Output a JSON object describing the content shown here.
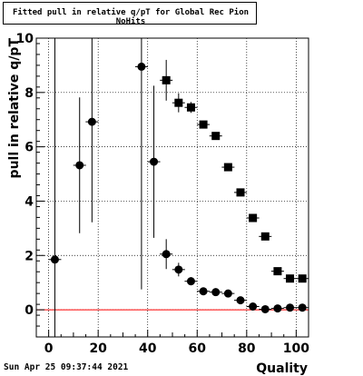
{
  "title": "Fitted pull in relative q/pT for Global Rec Pion NoHits",
  "footer": {
    "date": "Sun Apr 25 09:37:44 2021"
  },
  "chart_data": {
    "type": "scatter",
    "title": "Fitted pull in relative q/pT for Global Rec Pion NoHits",
    "xlabel": "Quality",
    "ylabel": "pull in relative q/pT",
    "xlim": [
      -5,
      105
    ],
    "ylim": [
      -1,
      10
    ],
    "xticks": [
      0,
      20,
      40,
      60,
      80,
      100
    ],
    "yticks": [
      0,
      2,
      4,
      6,
      8,
      10
    ],
    "grid": true,
    "reference_line": {
      "y": 0,
      "color": "#ff0000"
    },
    "series": [
      {
        "marker": "circle",
        "color": "#000000",
        "points": [
          {
            "x": 2.5,
            "y": 1.85,
            "err": 8.3
          },
          {
            "x": 12.5,
            "y": 5.32,
            "err": 2.5
          },
          {
            "x": 17.5,
            "y": 6.92,
            "err": 3.7
          },
          {
            "x": 37.5,
            "y": 8.95,
            "err": 8.2
          },
          {
            "x": 42.5,
            "y": 5.45,
            "err": 2.8
          },
          {
            "x": 47.5,
            "y": 2.05,
            "err": 0.55
          },
          {
            "x": 52.5,
            "y": 1.48,
            "err": 0.25
          },
          {
            "x": 57.5,
            "y": 1.05,
            "err": 0.15
          },
          {
            "x": 62.5,
            "y": 0.68,
            "err": 0.1
          },
          {
            "x": 67.5,
            "y": 0.65,
            "err": 0.08
          },
          {
            "x": 72.5,
            "y": 0.6,
            "err": 0.08
          },
          {
            "x": 77.5,
            "y": 0.35,
            "err": 0.05
          },
          {
            "x": 82.5,
            "y": 0.12,
            "err": 0.05
          },
          {
            "x": 87.5,
            "y": 0.02,
            "err": 0.05
          },
          {
            "x": 92.5,
            "y": 0.05,
            "err": 0.05
          },
          {
            "x": 97.5,
            "y": 0.08,
            "err": 0.05
          },
          {
            "x": 102.5,
            "y": 0.08,
            "err": 0.05
          }
        ]
      },
      {
        "marker": "square",
        "color": "#000000",
        "points": [
          {
            "x": 47.5,
            "y": 8.45,
            "err": 0.75
          },
          {
            "x": 52.5,
            "y": 7.62,
            "err": 0.35
          },
          {
            "x": 57.5,
            "y": 7.45,
            "err": 0.2
          },
          {
            "x": 62.5,
            "y": 6.82,
            "err": 0.1
          },
          {
            "x": 67.5,
            "y": 6.4,
            "err": 0.08
          },
          {
            "x": 72.5,
            "y": 5.25,
            "err": 0.06
          },
          {
            "x": 77.5,
            "y": 4.32,
            "err": 0.05
          },
          {
            "x": 82.5,
            "y": 3.38,
            "err": 0.05
          },
          {
            "x": 87.5,
            "y": 2.7,
            "err": 0.05
          },
          {
            "x": 92.5,
            "y": 1.42,
            "err": 0.05
          },
          {
            "x": 97.5,
            "y": 1.15,
            "err": 0.05
          },
          {
            "x": 102.5,
            "y": 1.15,
            "err": 0.05
          }
        ]
      }
    ]
  }
}
